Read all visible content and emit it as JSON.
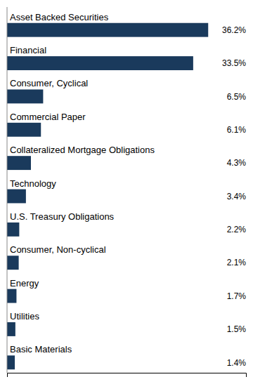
{
  "chart_data": {
    "type": "bar",
    "orientation": "horizontal",
    "categories": [
      "Asset Backed Securities",
      "Financial",
      "Consumer, Cyclical",
      "Commercial Paper",
      "Collateralized Mortgage Obligations",
      "Technology",
      "U.S. Treasury Obligations",
      "Consumer, Non-cyclical",
      "Energy",
      "Utilities",
      "Basic Materials"
    ],
    "values": [
      36.2,
      33.5,
      6.5,
      6.1,
      4.3,
      3.4,
      2.2,
      2.1,
      1.7,
      1.5,
      1.4
    ],
    "value_labels": [
      "36.2%",
      "33.5%",
      "6.5%",
      "6.1%",
      "4.3%",
      "3.4%",
      "2.2%",
      "2.1%",
      "1.7%",
      "1.5%",
      "1.4%"
    ],
    "data_labels": true,
    "color": "#1a3a5c",
    "xlim": [
      0,
      43
    ],
    "tick_labels": false
  }
}
